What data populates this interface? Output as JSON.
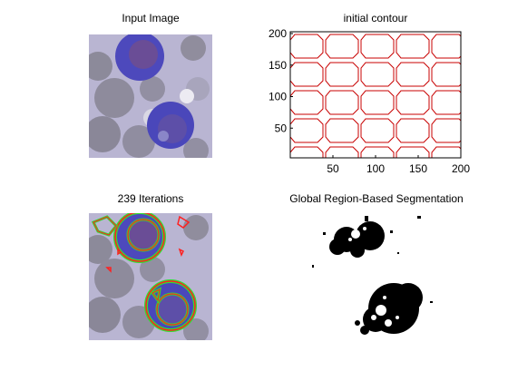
{
  "figure": {
    "panels": [
      {
        "id": "input",
        "title": "Input Image"
      },
      {
        "id": "contour",
        "title": "initial contour"
      },
      {
        "id": "iterations",
        "title": "239 Iterations"
      },
      {
        "id": "segmentation",
        "title": "Global Region-Based Segmentation"
      }
    ]
  },
  "contour_axes": {
    "x_ticks": [
      "50",
      "100",
      "150",
      "200"
    ],
    "y_ticks": [
      "200",
      "150",
      "100",
      "50"
    ],
    "xlim": [
      0,
      200
    ],
    "ylim": [
      0,
      200
    ],
    "contour_color": "#c00000"
  },
  "colors": {
    "cell_background": "#b8b4cf",
    "blue_cell": "#4a46b8",
    "evolved_contour": "#ff2020",
    "contour_fill": "#33dd33"
  }
}
